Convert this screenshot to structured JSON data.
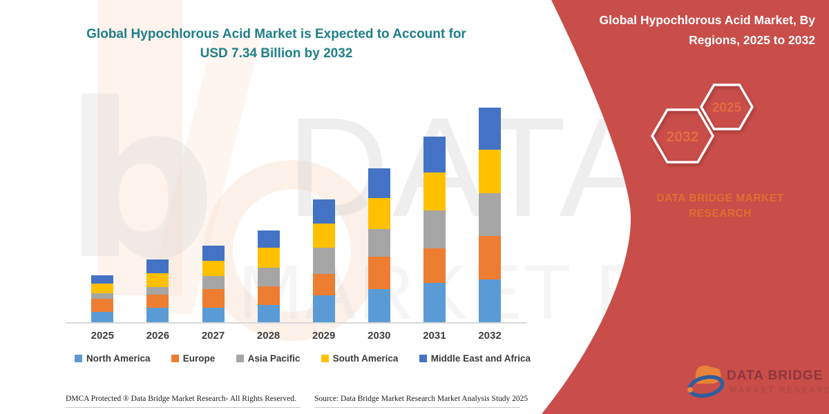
{
  "chart_title": {
    "line1": "Global Hypochlorous Acid Market is Expected to Account for",
    "line2": "USD 7.34 Billion by 2032",
    "color": "#1e7f87"
  },
  "chart_data": {
    "type": "bar",
    "stacked": true,
    "title": "Global Hypochlorous Acid Market is Expected to Account for USD 7.34 Billion by 2032",
    "unit": "USD Billion",
    "categories": [
      "2025",
      "2026",
      "2027",
      "2028",
      "2029",
      "2030",
      "2031",
      "2032"
    ],
    "series": [
      {
        "name": "North America",
        "color": "#5B9BD5",
        "values": [
          0.35,
          0.5,
          0.5,
          0.59,
          0.93,
          1.14,
          1.34,
          1.46
        ]
      },
      {
        "name": "Europe",
        "color": "#ED7D31",
        "values": [
          0.45,
          0.45,
          0.63,
          0.63,
          0.72,
          1.1,
          1.18,
          1.49
        ]
      },
      {
        "name": "Asia Pacific",
        "color": "#A5A5A5",
        "values": [
          0.19,
          0.26,
          0.45,
          0.64,
          0.89,
          0.94,
          1.3,
          1.47
        ]
      },
      {
        "name": "South America",
        "color": "#FFC000",
        "values": [
          0.33,
          0.47,
          0.52,
          0.68,
          0.84,
          1.06,
          1.3,
          1.48
        ]
      },
      {
        "name": "Middle East and Africa",
        "color": "#4472C4",
        "values": [
          0.28,
          0.47,
          0.53,
          0.6,
          0.83,
          1.02,
          1.22,
          1.44
        ]
      }
    ],
    "totals": [
      1.6,
      2.15,
      2.63,
      3.14,
      4.21,
      5.26,
      6.34,
      7.34
    ],
    "ylim": [
      0,
      7.5
    ],
    "yaxis_visible": false,
    "grid": false,
    "legend_position": "bottom"
  },
  "watermark": {
    "primary": "DATA BRI",
    "secondary": "MARKET RESE",
    "glyph": "b"
  },
  "panel": {
    "bg_color": "#c94d49",
    "header_line1": "Global Hypochlorous Acid Market, By",
    "header_line2": "Regions, 2025 to 2032",
    "hexagons": [
      {
        "label": "2032"
      },
      {
        "label": "2025"
      }
    ],
    "hex_label_color": "#e66a41",
    "brand_line1": "DATA BRIDGE MARKET",
    "brand_line2": "RESEARCH",
    "brand_color": "#dd7032",
    "logo": {
      "text_line1": "DATA BRIDGE",
      "text_line2": "MARKET RESEARCH"
    }
  },
  "footer": {
    "left": "DMCA Protected ® Data Bridge Market Research- All Rights Reserved.",
    "right": "Source: Data Bridge Market Research Market Analysis Study 2025"
  }
}
